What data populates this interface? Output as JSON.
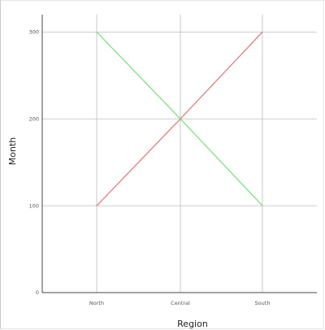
{
  "chart_data": {
    "type": "line",
    "categories": [
      "North",
      "Central",
      "South"
    ],
    "series": [
      {
        "values": [
          100,
          200,
          300
        ],
        "color": "#e08080"
      },
      {
        "values": [
          300,
          200,
          100
        ],
        "color": "#80e080"
      }
    ],
    "xlabel": "Region",
    "ylabel": "Month",
    "yticks": [
      0,
      100,
      200,
      300
    ],
    "ylim": [
      0,
      320
    ],
    "grid": true
  }
}
